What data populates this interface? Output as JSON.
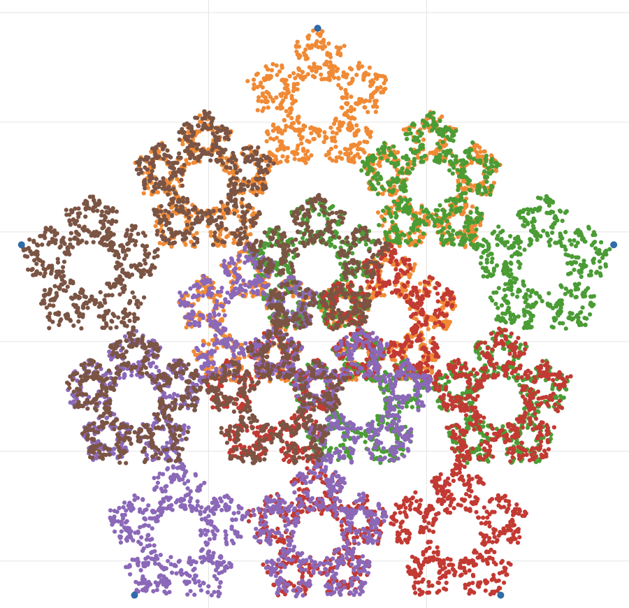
{
  "chart_data": {
    "type": "scatter",
    "title": "",
    "xlabel": "",
    "ylabel": "",
    "grid": true,
    "legend": "none",
    "xlim": [
      -1.02,
      1.0
    ],
    "ylim": [
      -0.85,
      1.09
    ],
    "vertices": [
      {
        "x": 0.0,
        "y": 1.0
      },
      {
        "x": 0.951,
        "y": 0.309
      },
      {
        "x": 0.588,
        "y": -0.809
      },
      {
        "x": -0.588,
        "y": -0.809
      },
      {
        "x": -0.951,
        "y": 0.309
      }
    ],
    "vertex_color": "#2f6ca8",
    "contraction_ratio": 0.382,
    "points_per_series": 2600,
    "series": [
      {
        "vertex": 0,
        "color": "#f08a35"
      },
      {
        "vertex": 1,
        "color": "#4b9c35"
      },
      {
        "vertex": 2,
        "color": "#c23a33"
      },
      {
        "vertex": 3,
        "color": "#8b68b8"
      },
      {
        "vertex": 4,
        "color": "#7b5444"
      }
    ],
    "x_grid": [
      -0.35,
      0.35
    ],
    "y_grid": [
      -0.7,
      -0.35,
      0.0,
      0.35,
      0.7,
      1.05
    ]
  }
}
